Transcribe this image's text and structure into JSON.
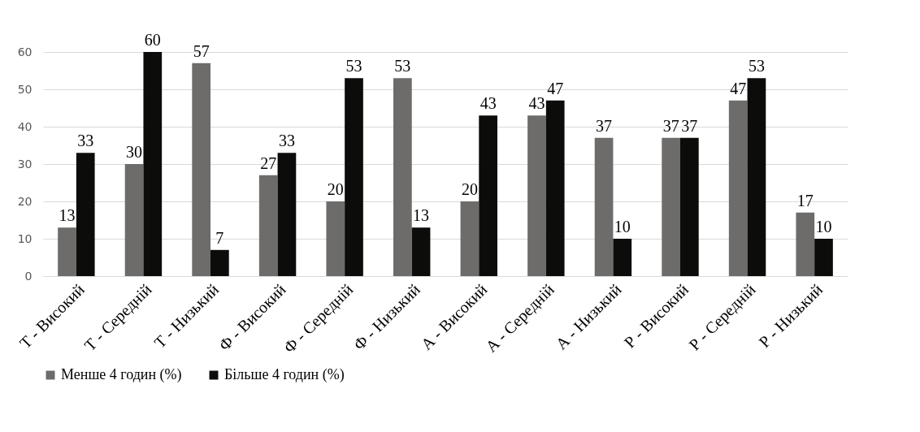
{
  "chart_data": {
    "type": "bar",
    "categories": [
      "Т - Високий",
      "Т - Середній",
      "Т - Низький",
      "Ф - Високий",
      "Ф - Середній",
      "Ф - Низький",
      "А - Високий",
      "А - Середній",
      "А - Низький",
      "Р - Високий",
      "Р - Середній",
      "Р - Низький"
    ],
    "series": [
      {
        "name": "Менше 4 годин (%)",
        "color": "#6d6c6a",
        "values": [
          13,
          30,
          57,
          27,
          20,
          53,
          20,
          43,
          37,
          37,
          47,
          17
        ]
      },
      {
        "name": "Більше 4 годин (%)",
        "color": "#0c0d0b",
        "values": [
          33,
          60,
          7,
          33,
          53,
          13,
          43,
          47,
          10,
          37,
          53,
          10
        ]
      }
    ],
    "ylim": [
      0,
      60
    ],
    "yticks": [
      0,
      10,
      20,
      30,
      40,
      50,
      60
    ],
    "grid": "y",
    "legend": "bottom",
    "data_labels": true
  }
}
